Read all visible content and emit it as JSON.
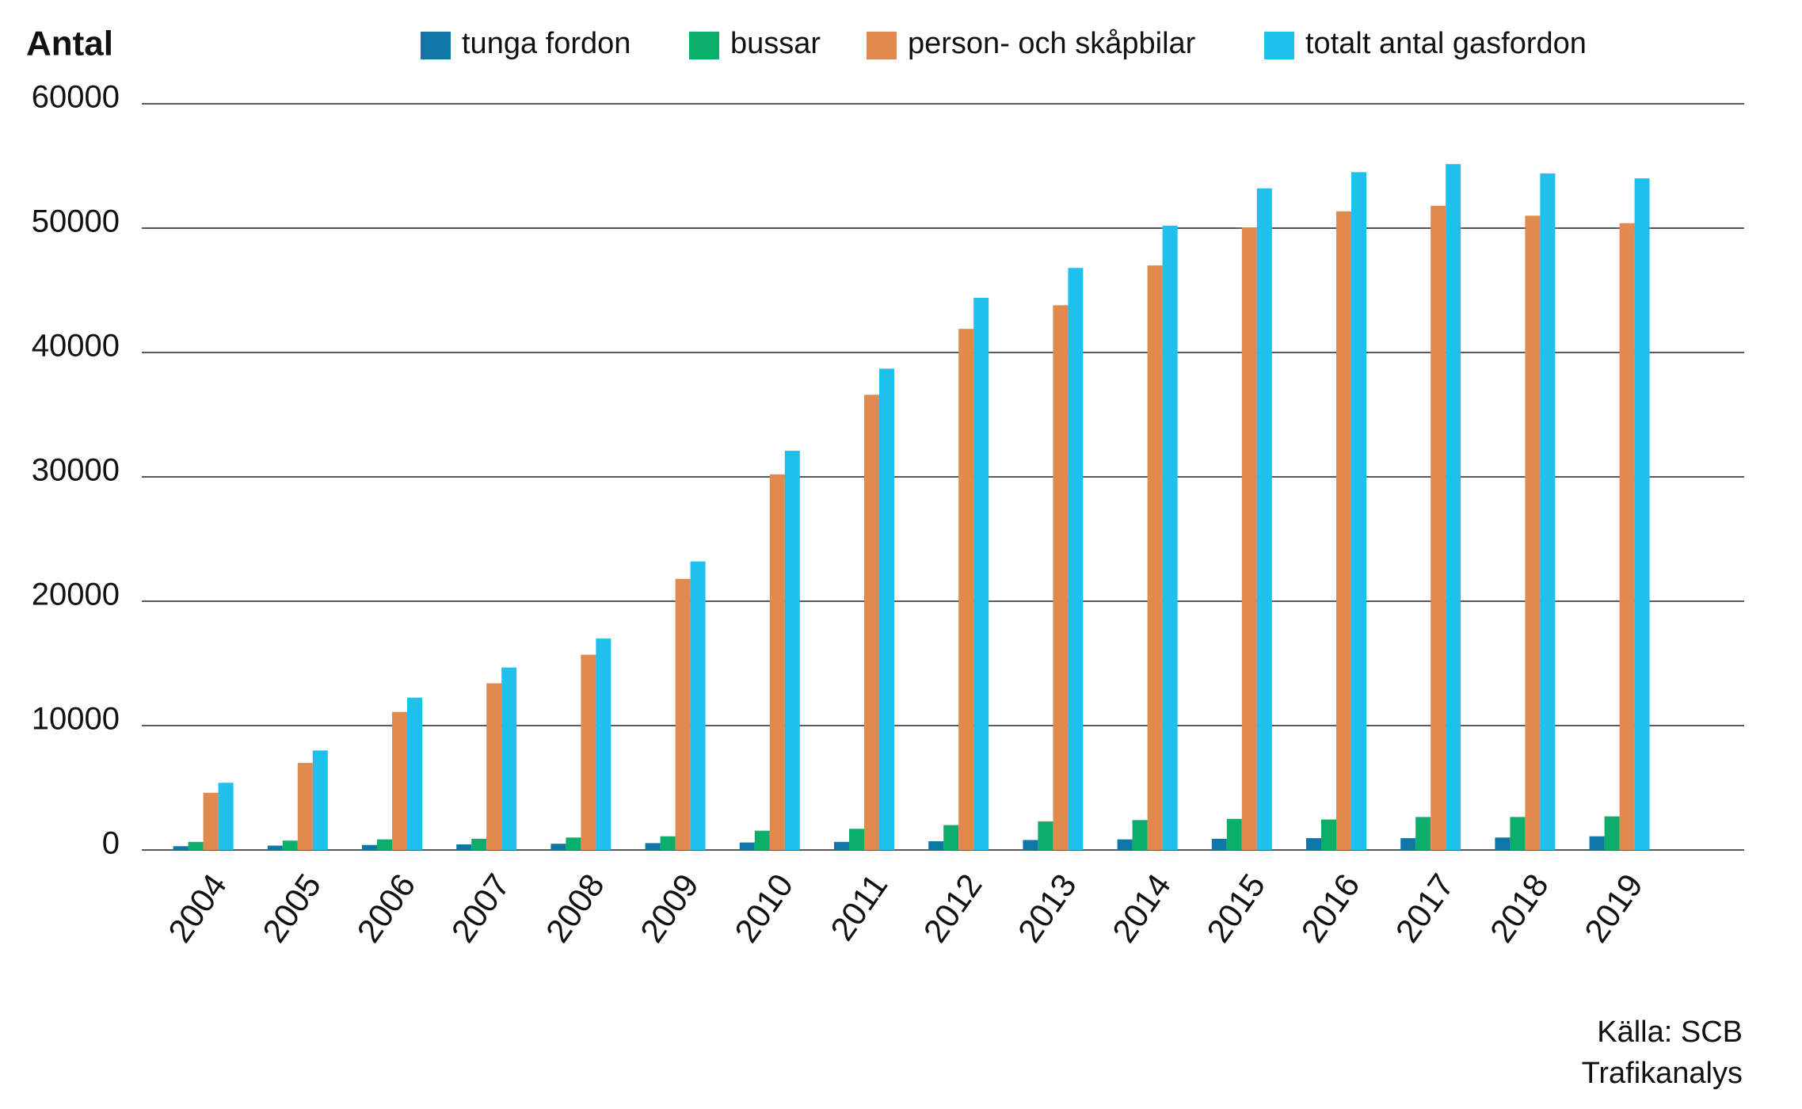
{
  "chart_data": {
    "type": "bar",
    "y_label": "Antal",
    "categories": [
      "2004",
      "2005",
      "2006",
      "2007",
      "2008",
      "2009",
      "2010",
      "2011",
      "2012",
      "2013",
      "2014",
      "2015",
      "2016",
      "2017",
      "2018",
      "2019"
    ],
    "series": [
      {
        "name": "tunga fordon",
        "color": "#0f76a8",
        "values": [
          300,
          350,
          400,
          450,
          500,
          550,
          600,
          650,
          700,
          800,
          850,
          900,
          950,
          950,
          1000,
          1100
        ]
      },
      {
        "name": "bussar",
        "color": "#0aaf6a",
        "values": [
          650,
          750,
          850,
          900,
          1000,
          1100,
          1550,
          1700,
          2000,
          2300,
          2400,
          2500,
          2450,
          2650,
          2650,
          2700
        ]
      },
      {
        "name": "person- och skåpbilar",
        "color": "#e08a4e",
        "values": [
          4600,
          7000,
          11100,
          13400,
          15700,
          21800,
          30200,
          36600,
          41900,
          43800,
          47000,
          50050,
          51350,
          51800,
          51000,
          50400
        ]
      },
      {
        "name": "totalt antal gasfordon",
        "color": "#1ec0ec",
        "values": [
          5400,
          8000,
          12250,
          14670,
          17000,
          23200,
          32100,
          38700,
          44400,
          46800,
          50200,
          53200,
          54500,
          55150,
          54400,
          54000
        ]
      }
    ],
    "ylim": [
      0,
      60000
    ],
    "yticks": [
      0,
      10000,
      20000,
      30000,
      40000,
      50000,
      60000
    ],
    "grid": true,
    "legend": "top",
    "annotations": [
      "Källa: SCB",
      "Trafikanalys"
    ]
  }
}
